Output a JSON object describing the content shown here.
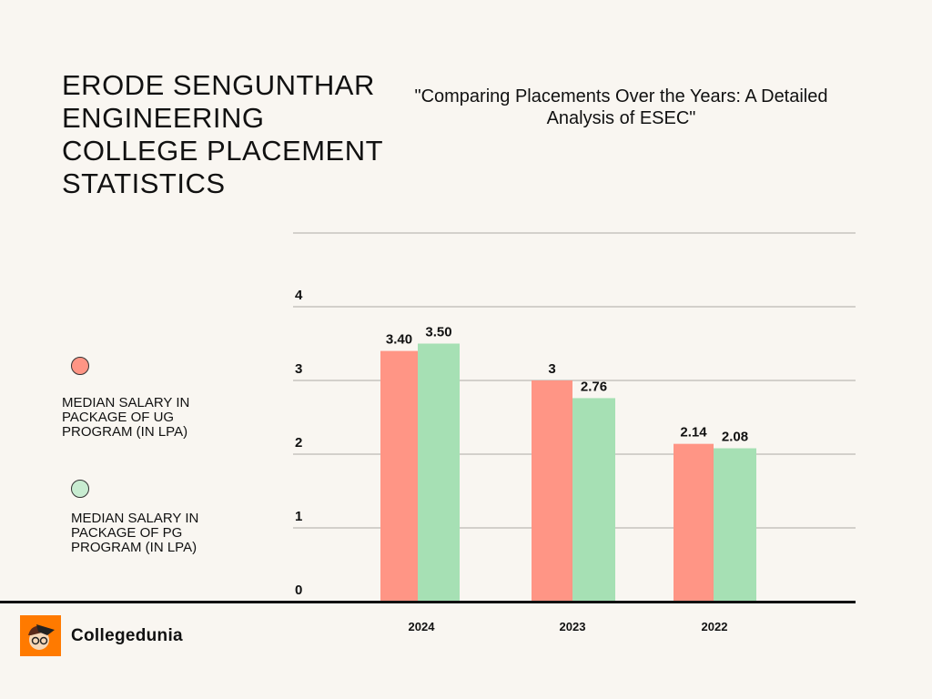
{
  "title": "ERODE SENGUNTHAR ENGINEERING COLLEGE PLACEMENT STATISTICS",
  "subtitle": "\"Comparing Placements Over the Years: A Detailed Analysis of ESEC\"",
  "brand": {
    "name": "Collegedunia",
    "logo_color": "#ff7a00"
  },
  "chart_data": {
    "type": "bar",
    "categories": [
      "2024",
      "2023",
      "2022"
    ],
    "series": [
      {
        "name": "MEDIAN SALARY IN PACKAGE OF UG PROGRAM (IN LPA)",
        "values": [
          3.4,
          3,
          2.14
        ],
        "labels": [
          "3.40",
          "3",
          "2.14"
        ],
        "color": "#ff9585"
      },
      {
        "name": "MEDIAN SALARY IN PACKAGE OF PG PROGRAM (IN LPA)",
        "values": [
          3.5,
          2.76,
          2.08
        ],
        "labels": [
          "3.50",
          "2.76",
          "2.08"
        ],
        "color": "#a6e0b4"
      }
    ],
    "yticks": [
      "0",
      "1",
      "2",
      "3",
      "4"
    ],
    "ylim": [
      0,
      5
    ],
    "grid": true,
    "legend_position": "left"
  }
}
